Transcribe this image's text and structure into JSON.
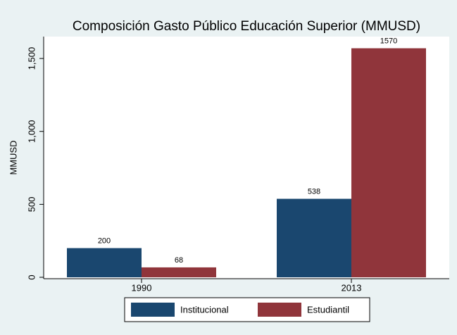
{
  "chart_data": {
    "type": "bar",
    "title": "Composición Gasto Público Educación Superior (MMUSD)",
    "ylabel": "MMUSD",
    "categories": [
      "1990",
      "2013"
    ],
    "series": [
      {
        "name": "Institucional",
        "color": "#1a476f",
        "values": [
          200,
          538
        ]
      },
      {
        "name": "Estudiantil",
        "color": "#90353b",
        "values": [
          68,
          1570
        ]
      }
    ],
    "ylim": [
      0,
      1650
    ],
    "yticks": [
      0,
      500,
      {
        "value": 1000,
        "label": "1,000"
      },
      {
        "value": 1500,
        "label": "1,500"
      }
    ],
    "legend": "bottom"
  }
}
